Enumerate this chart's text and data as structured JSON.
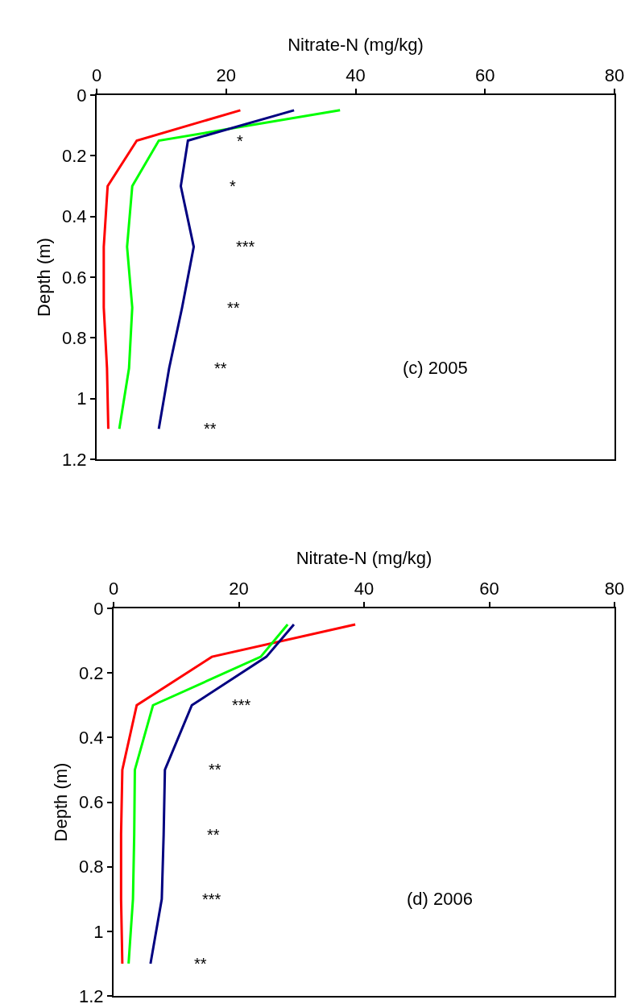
{
  "chart_data": [
    {
      "type": "line",
      "xlabel": "Nitrate-N (mg/kg)",
      "ylabel": "Depth (m)",
      "xlim": [
        0,
        80
      ],
      "xticks": [
        0,
        20,
        40,
        60,
        80
      ],
      "ylim": [
        1.2,
        0
      ],
      "yticks": [
        0,
        0.2,
        0.4,
        0.6,
        0.8,
        1,
        1.2
      ],
      "series": [
        {
          "color": "#ff0000",
          "x": [
            22.2,
            6.2,
            1.7,
            1.1,
            1.1,
            1.6,
            1.8
          ],
          "values": [
            0.05,
            0.15,
            0.3,
            0.5,
            0.7,
            0.9,
            1.1
          ]
        },
        {
          "color": "#00ff00",
          "x": [
            37.6,
            9.6,
            5.5,
            4.7,
            5.5,
            5.0,
            3.5
          ],
          "values": [
            0.05,
            0.15,
            0.3,
            0.5,
            0.7,
            0.9,
            1.1
          ]
        },
        {
          "color": "#000080",
          "x": [
            30.5,
            14.1,
            13.0,
            15.0,
            13.2,
            11.2,
            9.6
          ],
          "values": [
            0.05,
            0.15,
            0.3,
            0.5,
            0.7,
            0.9,
            1.1
          ]
        }
      ],
      "annotations": [
        "*",
        "*",
        "***",
        "**",
        "**",
        "**",
        "(c) 2005"
      ]
    },
    {
      "type": "line",
      "xlabel": "Nitrate-N (mg/kg)",
      "ylabel": "Depth (m)",
      "xlim": [
        0,
        80
      ],
      "xticks": [
        0,
        20,
        40,
        60,
        80
      ],
      "ylim": [
        1.2,
        0
      ],
      "yticks": [
        0,
        0.2,
        0.4,
        0.6,
        0.8,
        1,
        1.2
      ],
      "series": [
        {
          "color": "#ff0000",
          "x": [
            38.6,
            15.7,
            3.7,
            1.4,
            1.2,
            1.2,
            1.4
          ],
          "values": [
            0.05,
            0.15,
            0.3,
            0.5,
            0.7,
            0.9,
            1.1
          ]
        },
        {
          "color": "#00ff00",
          "x": [
            27.8,
            23.5,
            6.3,
            3.4,
            3.3,
            3.1,
            2.4
          ],
          "values": [
            0.05,
            0.15,
            0.3,
            0.5,
            0.7,
            0.9,
            1.1
          ]
        },
        {
          "color": "#000080",
          "x": [
            28.8,
            24.4,
            12.5,
            8.2,
            8.0,
            7.7,
            5.9
          ],
          "values": [
            0.05,
            0.15,
            0.3,
            0.5,
            0.7,
            0.9,
            1.1
          ]
        }
      ],
      "annotations": [
        "***",
        "**",
        "**",
        "***",
        "**",
        "(d) 2006"
      ]
    }
  ]
}
